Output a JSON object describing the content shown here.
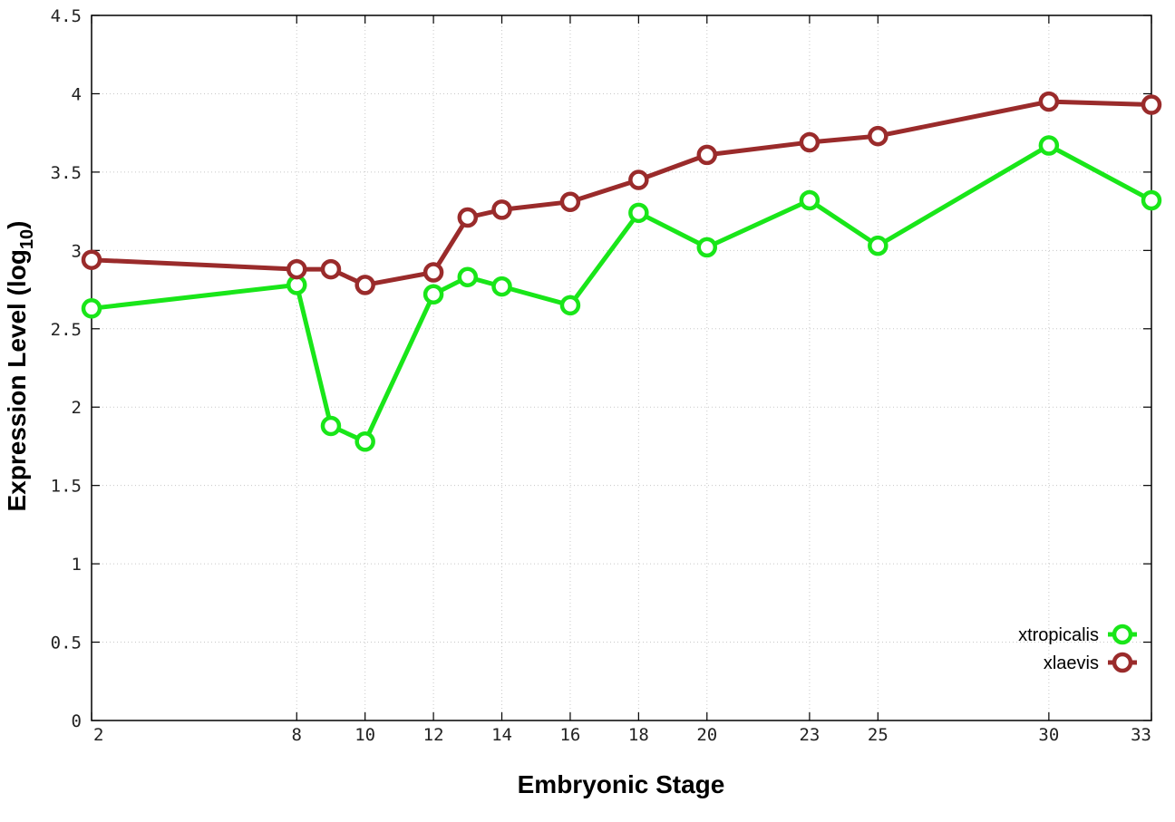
{
  "chart_data": {
    "type": "line",
    "title": "",
    "xlabel": "Embryonic Stage",
    "ylabel": "Expression Level (log",
    "ylabel_sub": "10",
    "ylabel_close": ")",
    "x": [
      2,
      8,
      9,
      10,
      12,
      13,
      14,
      16,
      18,
      20,
      23,
      25,
      30,
      33
    ],
    "x_tick_values": [
      2,
      8,
      10,
      12,
      14,
      16,
      18,
      20,
      23,
      25,
      30,
      33
    ],
    "x_tick_labels": [
      "2",
      "8",
      "10",
      "12",
      "14",
      "16",
      "18",
      "20",
      "23",
      "25",
      "30",
      "33"
    ],
    "xlim": [
      2,
      33
    ],
    "ylim": [
      0,
      4.5
    ],
    "y_tick_values": [
      0,
      0.5,
      1,
      1.5,
      2,
      2.5,
      3,
      3.5,
      4,
      4.5
    ],
    "y_tick_labels": [
      "0",
      "0.5",
      "1",
      "1.5",
      "2",
      "2.5",
      "3",
      "3.5",
      "4",
      "4.5"
    ],
    "grid": true,
    "legend_position": "bottom-right",
    "series": [
      {
        "name": "xtropicalis",
        "color": "#19e619",
        "marker": "open-circle",
        "values": [
          2.63,
          2.78,
          1.88,
          1.78,
          2.72,
          2.83,
          2.77,
          2.65,
          3.24,
          3.02,
          3.32,
          3.03,
          3.67,
          3.32
        ]
      },
      {
        "name": "xlaevis",
        "color": "#9a2b2b",
        "marker": "open-circle",
        "values": [
          2.94,
          2.88,
          2.88,
          2.78,
          2.86,
          3.21,
          3.26,
          3.31,
          3.45,
          3.61,
          3.69,
          3.73,
          3.95,
          3.93
        ]
      }
    ]
  }
}
